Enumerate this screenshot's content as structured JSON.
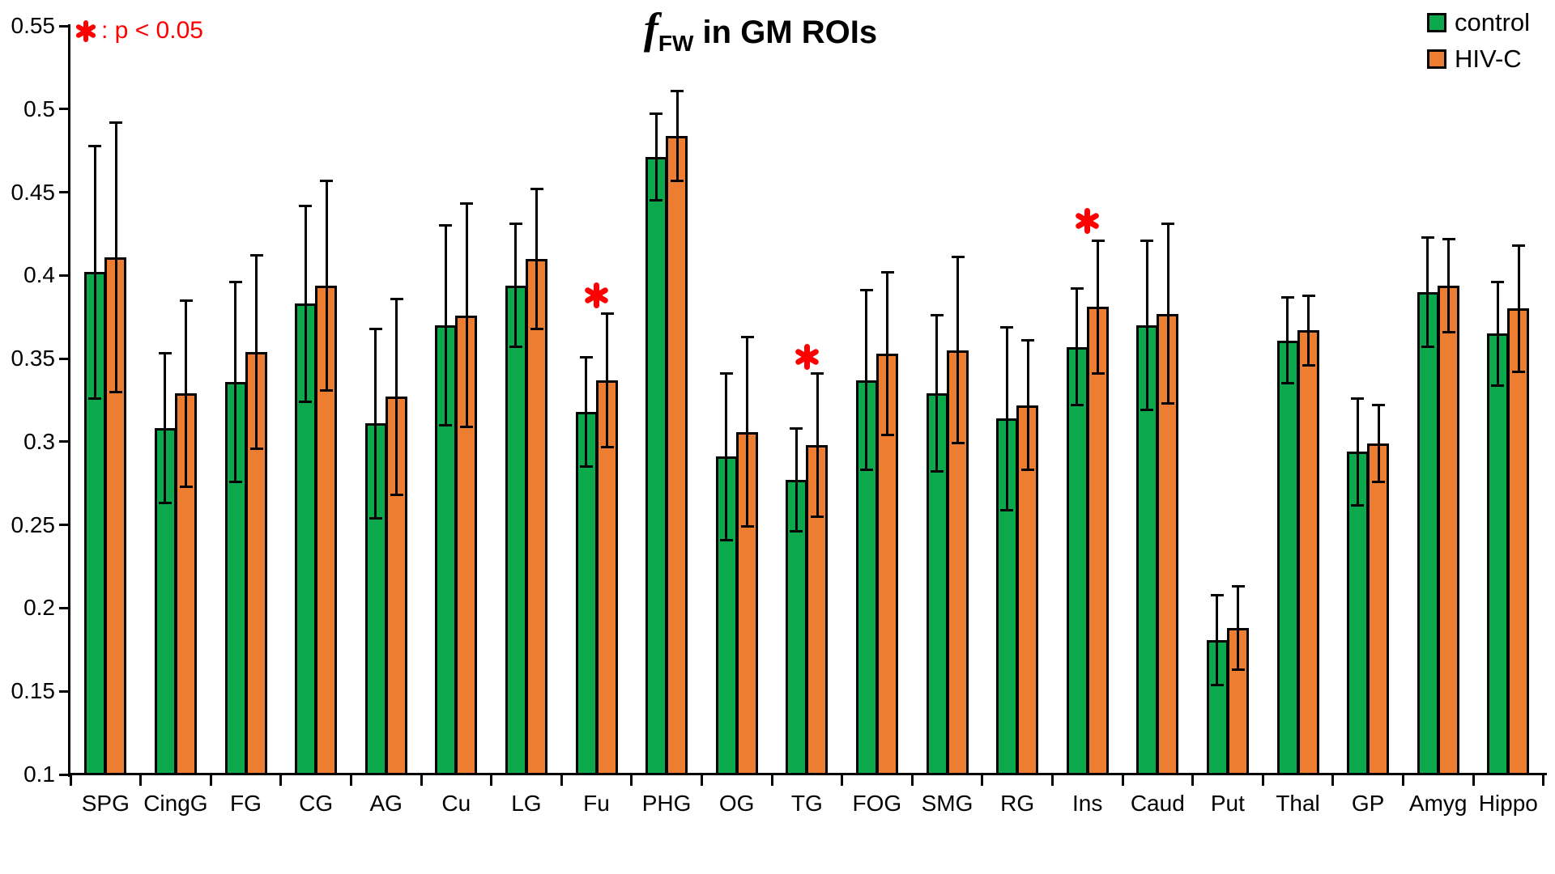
{
  "title": {
    "f_symbol": "f",
    "f_subscript": "FW",
    "suffix": " in GM ROIs"
  },
  "annotation": {
    "symbol": "✱",
    "text": ": p < 0.05"
  },
  "legend": [
    {
      "label": "control",
      "color": "#0BA94C"
    },
    {
      "label": "HIV-C",
      "color": "#ED7D31"
    }
  ],
  "chart_data": {
    "type": "bar",
    "title": "fFW in GM ROIs",
    "categories": [
      "SPG",
      "CingG",
      "FG",
      "CG",
      "AG",
      "Cu",
      "LG",
      "Fu",
      "PHG",
      "OG",
      "TG",
      "FOG",
      "SMG",
      "RG",
      "Ins",
      "Caud",
      "Put",
      "Thal",
      "GP",
      "Amyg",
      "Hippo"
    ],
    "series": [
      {
        "name": "control",
        "color": "#0BA94C",
        "values": [
          0.402,
          0.308,
          0.336,
          0.383,
          0.311,
          0.37,
          0.394,
          0.318,
          0.471,
          0.291,
          0.277,
          0.337,
          0.329,
          0.314,
          0.357,
          0.37,
          0.181,
          0.361,
          0.294,
          0.39,
          0.365
        ],
        "errors": [
          0.076,
          0.045,
          0.06,
          0.059,
          0.057,
          0.06,
          0.037,
          0.033,
          0.026,
          0.05,
          0.031,
          0.054,
          0.047,
          0.055,
          0.035,
          0.051,
          0.027,
          0.026,
          0.032,
          0.033,
          0.031
        ]
      },
      {
        "name": "HIV-C",
        "color": "#ED7D31",
        "values": [
          0.411,
          0.329,
          0.354,
          0.394,
          0.327,
          0.376,
          0.41,
          0.337,
          0.484,
          0.306,
          0.298,
          0.353,
          0.355,
          0.322,
          0.381,
          0.377,
          0.188,
          0.367,
          0.299,
          0.394,
          0.38
        ],
        "errors": [
          0.081,
          0.056,
          0.058,
          0.063,
          0.059,
          0.067,
          0.042,
          0.04,
          0.027,
          0.057,
          0.043,
          0.049,
          0.056,
          0.039,
          0.04,
          0.054,
          0.025,
          0.021,
          0.023,
          0.028,
          0.038
        ]
      }
    ],
    "significance": [
      {
        "category": "Fu",
        "marker_value": 0.388
      },
      {
        "category": "TG",
        "marker_value": 0.351
      },
      {
        "category": "Ins",
        "marker_value": 0.433
      }
    ],
    "ylim": [
      0.1,
      0.55
    ],
    "yticks": [
      {
        "v": 0.1,
        "label": "0.1"
      },
      {
        "v": 0.15,
        "label": "0.15"
      },
      {
        "v": 0.2,
        "label": "0.2"
      },
      {
        "v": 0.25,
        "label": "0.25"
      },
      {
        "v": 0.3,
        "label": "0.3"
      },
      {
        "v": 0.35,
        "label": "0.35"
      },
      {
        "v": 0.4,
        "label": "0.4"
      },
      {
        "v": 0.45,
        "label": "0.45"
      },
      {
        "v": 0.5,
        "label": "0.5"
      },
      {
        "v": 0.55,
        "label": "0.55"
      }
    ],
    "grid": false,
    "error_bars": true,
    "legend_position": "top-right"
  }
}
